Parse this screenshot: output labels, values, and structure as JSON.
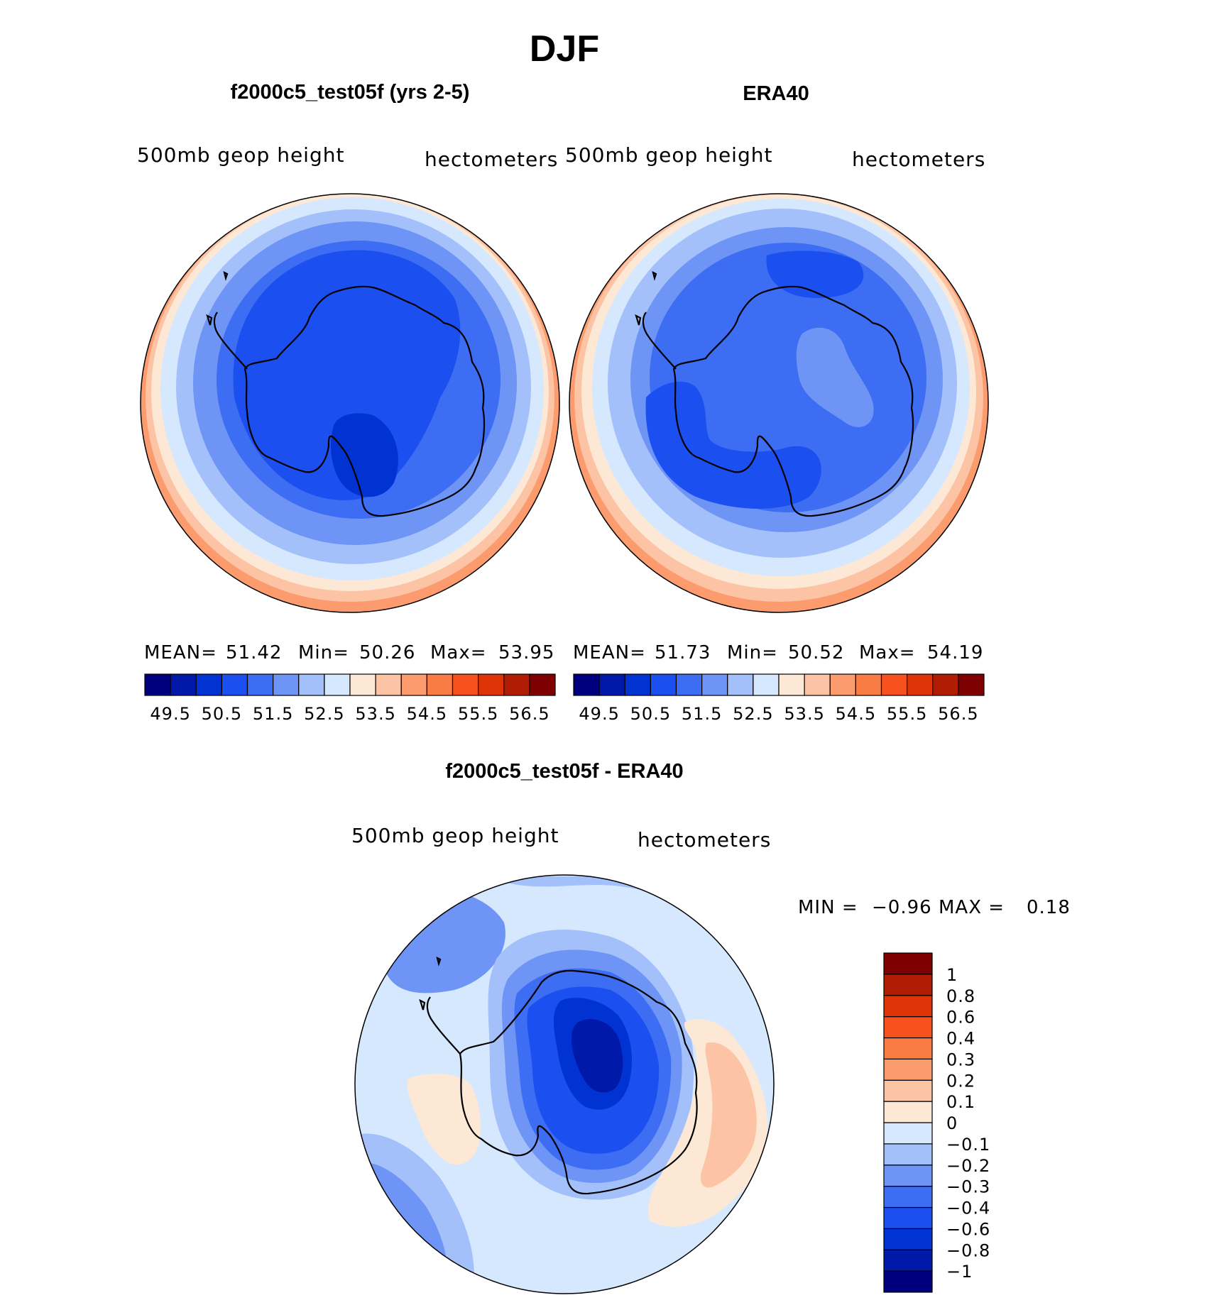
{
  "figure_title": "DJF",
  "chart_data": [
    {
      "type": "heatmap",
      "projection": "south-polar stereographic",
      "panel_title": "f2000c5_test05f (yrs 2-5)",
      "field_label": "500mb geop height",
      "units_label": "hectometers",
      "stats": {
        "mean_label": "MEAN=",
        "mean": "51.42",
        "min_label": "Min=",
        "min": "50.26",
        "max_label": "Max=",
        "max": "53.95"
      },
      "contour_levels": [
        "49.5",
        "50",
        "50.5",
        "51",
        "51.5",
        "52",
        "52.5",
        "53",
        "53.5",
        "54",
        "54.5",
        "55",
        "55.5",
        "56",
        "56.5"
      ],
      "colorbar_tick_labels": [
        "49.5",
        "50.5",
        "51.5",
        "52.5",
        "53.5",
        "54.5",
        "55.5",
        "56.5"
      ],
      "colorbar_orientation": "horizontal"
    },
    {
      "type": "heatmap",
      "projection": "south-polar stereographic",
      "panel_title": "ERA40",
      "field_label": "500mb geop height",
      "units_label": "hectometers",
      "stats": {
        "mean_label": "MEAN=",
        "mean": "51.73",
        "min_label": "Min=",
        "min": "50.52",
        "max_label": "Max=",
        "max": "54.19"
      },
      "contour_levels": [
        "49.5",
        "50",
        "50.5",
        "51",
        "51.5",
        "52",
        "52.5",
        "53",
        "53.5",
        "54",
        "54.5",
        "55",
        "55.5",
        "56",
        "56.5"
      ],
      "colorbar_tick_labels": [
        "49.5",
        "50.5",
        "51.5",
        "52.5",
        "53.5",
        "54.5",
        "55.5",
        "56.5"
      ],
      "colorbar_orientation": "horizontal"
    },
    {
      "type": "heatmap",
      "projection": "south-polar stereographic",
      "panel_title": "f2000c5_test05f - ERA40",
      "field_label": "500mb geop height",
      "units_label": "hectometers",
      "stats": {
        "min_label": "MIN =",
        "min": "−0.96",
        "max_label": "MAX =",
        "max": "0.18"
      },
      "contour_levels": [
        "−1",
        "−0.8",
        "−0.6",
        "−0.4",
        "−0.3",
        "−0.2",
        "−0.1",
        "0",
        "0.1",
        "0.2",
        "0.3",
        "0.4",
        "0.6",
        "0.8",
        "1"
      ],
      "colorbar_tick_labels": [
        "−1",
        "−0.8",
        "−0.6",
        "−0.4",
        "−0.3",
        "−0.2",
        "−0.1",
        "0",
        "0.1",
        "0.2",
        "0.3",
        "0.4",
        "0.6",
        "0.8",
        "1"
      ],
      "colorbar_orientation": "vertical"
    }
  ],
  "palette": [
    "#00007f",
    "#0019a8",
    "#0033d1",
    "#1c4ff0",
    "#3c6df2",
    "#6e94f5",
    "#a4c0fa",
    "#d6e8fd",
    "#fde8d6",
    "#fcc4a4",
    "#fb9b6e",
    "#fa7c45",
    "#f6511e",
    "#df3308",
    "#b01d04",
    "#7f0000"
  ],
  "outline_color": "#000000"
}
